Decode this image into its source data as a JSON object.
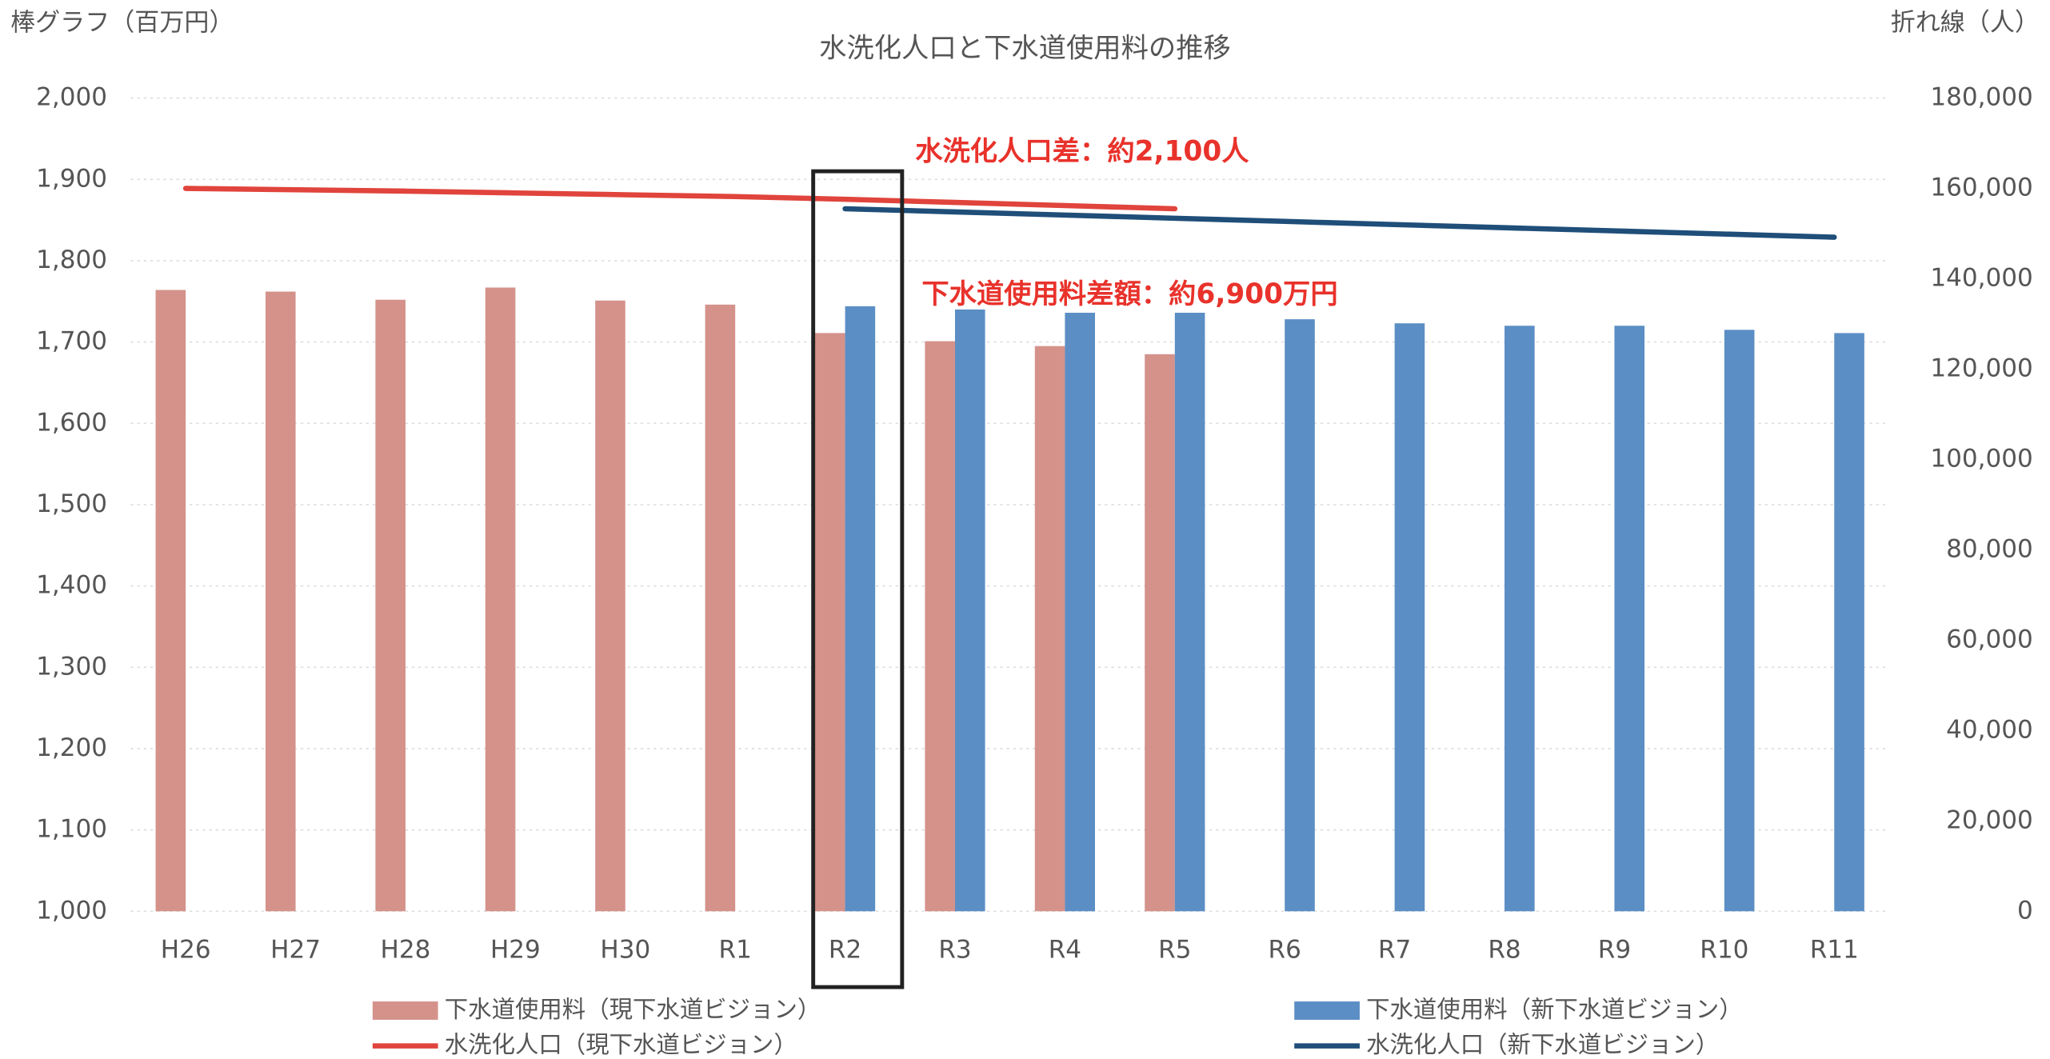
{
  "chart_data": {
    "type": "bar-line",
    "title": "水洗化人口と下水道使用料の推移",
    "y_label": "棒グラフ（百万円）",
    "y2_label": "折れ線（人）",
    "annotations": [
      "水洗化人口差：約2,100人",
      "下水道使用料差額：約6,900万円"
    ],
    "annotation_color": "#e8322b",
    "categories": [
      "H26",
      "H27",
      "H28",
      "H29",
      "H30",
      "R1",
      "R2",
      "R3",
      "R4",
      "R5",
      "R6",
      "R7",
      "R8",
      "R9",
      "R10",
      "R11"
    ],
    "series": [
      {
        "name": "下水道使用料（現下水道ビジョン）",
        "type": "bar",
        "color": "#d4928b",
        "values": [
          1764,
          1762,
          1752,
          1767,
          1751,
          1746,
          1711,
          1701,
          1695,
          1685,
          null,
          null,
          null,
          null,
          null,
          null
        ]
      },
      {
        "name": "下水道使用料（新下水道ビジョン）",
        "type": "bar",
        "color": "#5b8ec4",
        "values": [
          null,
          null,
          null,
          null,
          null,
          null,
          1744,
          1740,
          1736,
          1736,
          1728,
          1723,
          1720,
          1720,
          1715,
          1711
        ]
      },
      {
        "name": "水洗化人口（現下水道ビジョン）",
        "type": "line",
        "axis": "y2",
        "color": "#e0443c",
        "values": [
          160000,
          159700,
          159400,
          159000,
          158600,
          158200,
          157600,
          156900,
          156200,
          155500,
          null,
          null,
          null,
          null,
          null,
          null
        ]
      },
      {
        "name": "水洗化人口（新下水道ビジョン）",
        "type": "line",
        "axis": "y2",
        "color": "#1f4e79",
        "values": [
          null,
          null,
          null,
          null,
          null,
          null,
          155500,
          154800,
          154100,
          153400,
          152700,
          152000,
          151300,
          150600,
          149900,
          149200
        ]
      }
    ],
    "ylim": [
      1000,
      2000
    ],
    "yticks": [
      {
        "value": 1000,
        "label": "1,000"
      },
      {
        "value": 1100,
        "label": "1,100"
      },
      {
        "value": 1200,
        "label": "1,200"
      },
      {
        "value": 1300,
        "label": "1,300"
      },
      {
        "value": 1400,
        "label": "1,400"
      },
      {
        "value": 1500,
        "label": "1,500"
      },
      {
        "value": 1600,
        "label": "1,600"
      },
      {
        "value": 1700,
        "label": "1,700"
      },
      {
        "value": 1800,
        "label": "1,800"
      },
      {
        "value": 1900,
        "label": "1,900"
      },
      {
        "value": 2000,
        "label": "2,000"
      }
    ],
    "y2lim": [
      0,
      180000
    ],
    "y2ticks": [
      0,
      {
        "value": 20000,
        "label": "20,000"
      },
      {
        "value": 40000,
        "label": "40,000"
      },
      {
        "value": 60000,
        "label": "60,000"
      },
      {
        "value": 80000,
        "label": "80,000"
      },
      {
        "value": 100000,
        "label": "100,000"
      },
      {
        "value": 120000,
        "label": "120,000"
      },
      {
        "value": 140000,
        "label": "140,000"
      },
      {
        "value": 160000,
        "label": "160,000"
      },
      {
        "value": 180000,
        "label": "180,000"
      }
    ],
    "grid": true,
    "legend": "bottom"
  }
}
